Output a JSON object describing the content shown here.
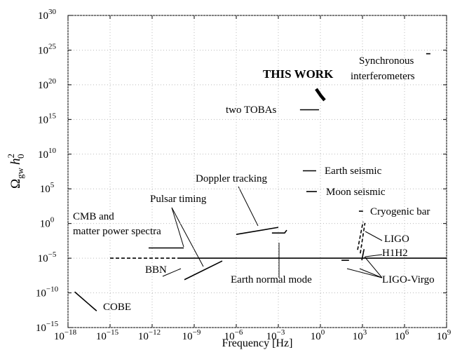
{
  "chart_data": {
    "type": "line",
    "xlabel": "Frequency [Hz]",
    "ylabel": {
      "omega": "Ω",
      "omega_sub": "gw",
      "h": "h",
      "h_sub": "0",
      "h_sup": "2"
    },
    "xscale": "log",
    "yscale": "log",
    "grid": true,
    "color": "#000000",
    "xlim": [
      1e-18,
      1000000000.0
    ],
    "xticks": [
      {
        "value": 1e-18,
        "label": "10^-18"
      },
      {
        "value": 1e-15,
        "label": "10^-15"
      },
      {
        "value": 1e-12,
        "label": "10^-12"
      },
      {
        "value": 1e-09,
        "label": "10^-9"
      },
      {
        "value": 1e-06,
        "label": "10^-6"
      },
      {
        "value": 0.001,
        "label": "10^-3"
      },
      {
        "value": 1,
        "label": "10^0"
      },
      {
        "value": 1000.0,
        "label": "10^3"
      },
      {
        "value": 1000000.0,
        "label": "10^6"
      },
      {
        "value": 1000000000.0,
        "label": "10^9"
      }
    ],
    "ylim": [
      1e-15,
      1e+30
    ],
    "yticks": [
      {
        "value": 1e-15,
        "label": "10^-15"
      },
      {
        "value": 1e-10,
        "label": "10^-10"
      },
      {
        "value": 1e-05,
        "label": "10^-5"
      },
      {
        "value": 1,
        "label": "10^0"
      },
      {
        "value": 100000.0,
        "label": "10^5"
      },
      {
        "value": 10000000000.0,
        "label": "10^10"
      },
      {
        "value": 1000000000000000.0,
        "label": "10^15"
      },
      {
        "value": 1e+20,
        "label": "10^20"
      },
      {
        "value": 1e+25,
        "label": "10^25"
      },
      {
        "value": 1e+30,
        "label": "10^30"
      }
    ],
    "series": [
      {
        "style": "solid",
        "x": [
          3e-18,
          1.1e-16
        ],
        "values": [
          1.4e-10,
          2.5e-13
        ]
      },
      {
        "style": "dashed",
        "x": [
          1e-15,
          1e-10
        ],
        "values": [
          1e-05,
          1e-05
        ]
      },
      {
        "style": "solid",
        "x": [
          1e-10,
          1000000000.0
        ],
        "values": [
          1e-05,
          1e-05
        ]
      },
      {
        "style": "solid",
        "x": [
          5.6e-13,
          1.8e-10
        ],
        "values": [
          0.0003,
          0.0003
        ]
      },
      {
        "style": "solid",
        "x": [
          2e-10,
          1e-07
        ],
        "values": [
          8e-09,
          4e-06
        ]
      },
      {
        "style": "solid",
        "x": [
          1e-06,
          0.001
        ],
        "values": [
          0.027,
          0.28
        ]
      },
      {
        "style": "solid",
        "x": [
          0.00035,
          0.0028,
          0.004
        ],
        "values": [
          0.043,
          0.043,
          0.11
        ]
      },
      {
        "style": "solid",
        "x": [
          0.035,
          0.8
        ],
        "values": [
          2.5e+16,
          2.5e+16
        ]
      },
      {
        "style": "bold",
        "x": [
          0.5,
          1.1,
          2
        ],
        "values": [
          2.5e+19,
          2.5e+18,
          6e+17
        ]
      },
      {
        "style": "solid",
        "x": [
          0.056,
          0.5
        ],
        "values": [
          40000000.0,
          40000000.0
        ]
      },
      {
        "style": "solid",
        "x": [
          0.1,
          0.56
        ],
        "values": [
          40000.0,
          40000.0
        ]
      },
      {
        "style": "solid",
        "x": [
          560,
          1100
        ],
        "values": [
          60,
          60
        ]
      },
      {
        "style": "solid",
        "x": [
          35000000.0,
          70000000.0
        ],
        "values": [
          3e+24,
          3e+24
        ]
      },
      {
        "style": "dashed",
        "x": [
          450,
          1100
        ],
        "values": [
          0.00016,
          1.8
        ]
      },
      {
        "style": "dashed",
        "x": [
          700,
          1500
        ],
        "values": [
          5e-05,
          1.2
        ]
      },
      {
        "style": "solid",
        "x": [
          32,
          110
        ],
        "values": [
          5e-06,
          5e-06
        ]
      },
      {
        "style": "solid",
        "x": [
          900,
          1300
        ],
        "values": [
          5e-06,
          0.0002
        ]
      }
    ],
    "annotations": [
      [
        "THIS WORK"
      ],
      [
        "Synchronous",
        "interferometers"
      ],
      [
        "two TOBAs"
      ],
      [
        "Earth seismic"
      ],
      [
        "Moon seismic"
      ],
      [
        "Doppler tracking"
      ],
      [
        "Pulsar timing"
      ],
      [
        "Cryogenic bar"
      ],
      [
        "CMB and",
        "matter power spectra"
      ],
      [
        "LIGO"
      ],
      [
        "H1H2"
      ],
      [
        "BBN"
      ],
      [
        "Earth normal mode"
      ],
      [
        "LIGO-Virgo"
      ],
      [
        "COBE"
      ]
    ]
  }
}
